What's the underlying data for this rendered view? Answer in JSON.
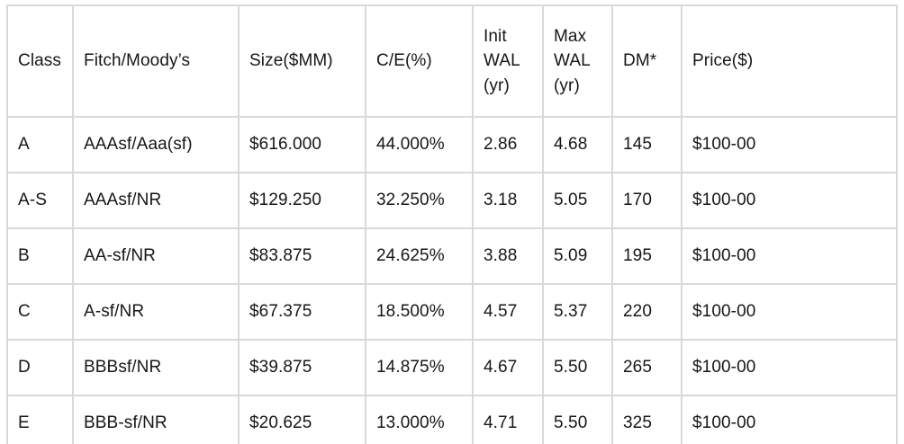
{
  "table": {
    "columns": [
      {
        "key": "class",
        "label": "Class"
      },
      {
        "key": "rating",
        "label": "Fitch/Moody’s"
      },
      {
        "key": "size",
        "label": "Size($MM)"
      },
      {
        "key": "ce",
        "label": "C/E(%)"
      },
      {
        "key": "init-wal",
        "label": "Init WAL (yr)"
      },
      {
        "key": "max-wal",
        "label": "Max WAL (yr)"
      },
      {
        "key": "dm",
        "label": "DM*"
      },
      {
        "key": "price",
        "label": "Price($)"
      }
    ],
    "rows": [
      [
        "A",
        "AAAsf/Aaa(sf)",
        "$616.000",
        "44.000%",
        "2.86",
        "4.68",
        "145",
        "$100-00"
      ],
      [
        "A-S",
        "AAAsf/NR",
        "$129.250",
        "32.250%",
        "3.18",
        "5.05",
        "170",
        "$100-00"
      ],
      [
        "B",
        "AA-sf/NR",
        "$83.875",
        "24.625%",
        "3.88",
        "5.09",
        "195",
        "$100-00"
      ],
      [
        "C",
        "A-sf/NR",
        "$67.375",
        "18.500%",
        "4.57",
        "5.37",
        "220",
        "$100-00"
      ],
      [
        "D",
        "BBBsf/NR",
        "$39.875",
        "14.875%",
        "4.67",
        "5.50",
        "265",
        "$100-00"
      ],
      [
        "E",
        "BBB-sf/NR",
        "$20.625",
        "13.000%",
        "4.71",
        "5.50",
        "325",
        "$100-00"
      ]
    ],
    "colors": {
      "border": "#d9d9d9",
      "text": "#161616",
      "background": "#ffffff"
    }
  }
}
